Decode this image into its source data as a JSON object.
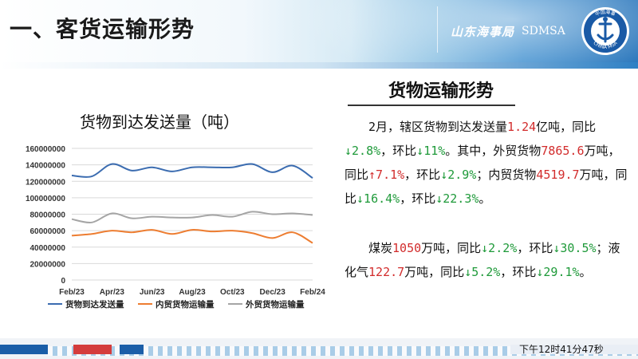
{
  "header": {
    "title": "一、客货运输形势",
    "brand_cn": "山东海事局",
    "brand_en": "SDMSA",
    "logo_text_top": "中国海事",
    "logo_text_bottom": "CHINA MSA"
  },
  "section": {
    "title": "货物运输形势",
    "p1": [
      {
        "t": "2月，辖区货物到达发送量"
      },
      {
        "t": "1.24",
        "c": "red"
      },
      {
        "t": "亿吨，同比"
      },
      {
        "t": "↓2.8%",
        "c": "grn"
      },
      {
        "t": "，环比"
      },
      {
        "t": "↓11%",
        "c": "grn"
      },
      {
        "t": "。其中，外贸货物"
      },
      {
        "t": "7865.6",
        "c": "red"
      },
      {
        "t": "万吨，同比"
      },
      {
        "t": "↑7.1%",
        "c": "red"
      },
      {
        "t": "，环比"
      },
      {
        "t": "↓2.9%",
        "c": "grn"
      },
      {
        "t": "；内贸货物"
      },
      {
        "t": "4519.7",
        "c": "red"
      },
      {
        "t": "万吨，同比"
      },
      {
        "t": "↓16.4%",
        "c": "grn"
      },
      {
        "t": "，环比"
      },
      {
        "t": "↓22.3%",
        "c": "grn"
      },
      {
        "t": "。"
      }
    ],
    "p2": [
      {
        "t": "煤炭"
      },
      {
        "t": "1050",
        "c": "red"
      },
      {
        "t": "万吨，同比"
      },
      {
        "t": "↓2.2%",
        "c": "grn"
      },
      {
        "t": "，环比"
      },
      {
        "t": "↓30.5%",
        "c": "grn"
      },
      {
        "t": "；液化气"
      },
      {
        "t": "122.7",
        "c": "red"
      },
      {
        "t": "万吨，同比"
      },
      {
        "t": "↓5.2%",
        "c": "grn"
      },
      {
        "t": "，环比"
      },
      {
        "t": "↓29.1%",
        "c": "grn"
      },
      {
        "t": "。"
      }
    ]
  },
  "footer": {
    "time": "下午12时41分47秒"
  },
  "chart_data": {
    "type": "line",
    "title": "货物到达发送量（吨）",
    "xlabel": "",
    "ylabel": "",
    "ylim": [
      0,
      160000000
    ],
    "yticks": [
      "0",
      "20000000",
      "40000000",
      "60000000",
      "80000000",
      "100000000",
      "120000000",
      "140000000",
      "160000000"
    ],
    "categories": [
      "Feb/23",
      "Mar/23",
      "Apr/23",
      "May/23",
      "Jun/23",
      "Jul/23",
      "Aug/23",
      "Sep/23",
      "Oct/23",
      "Nov/23",
      "Dec/23",
      "Jan/24",
      "Feb/24"
    ],
    "xticks": [
      "Feb/23",
      "Apr/23",
      "Jun/23",
      "Aug/23",
      "Oct/23",
      "Dec/23",
      "Feb/24"
    ],
    "grid": true,
    "legend_position": "bottom",
    "series": [
      {
        "name": "货物到达发送量",
        "color": "#3b6cb0",
        "values": [
          127000000,
          126000000,
          141000000,
          133000000,
          137000000,
          132000000,
          137000000,
          137000000,
          137000000,
          141000000,
          131000000,
          139000000,
          124000000
        ]
      },
      {
        "name": "内贸货物运输量",
        "color": "#ed7d31",
        "values": [
          54000000,
          56000000,
          60000000,
          58000000,
          61000000,
          56000000,
          61000000,
          59000000,
          60000000,
          57000000,
          51000000,
          58000000,
          45000000
        ]
      },
      {
        "name": "外贸货物运输量",
        "color": "#a5a5a5",
        "values": [
          74000000,
          70000000,
          81000000,
          75000000,
          77000000,
          76000000,
          76000000,
          79000000,
          77000000,
          83000000,
          80000000,
          81000000,
          79000000
        ]
      }
    ]
  }
}
